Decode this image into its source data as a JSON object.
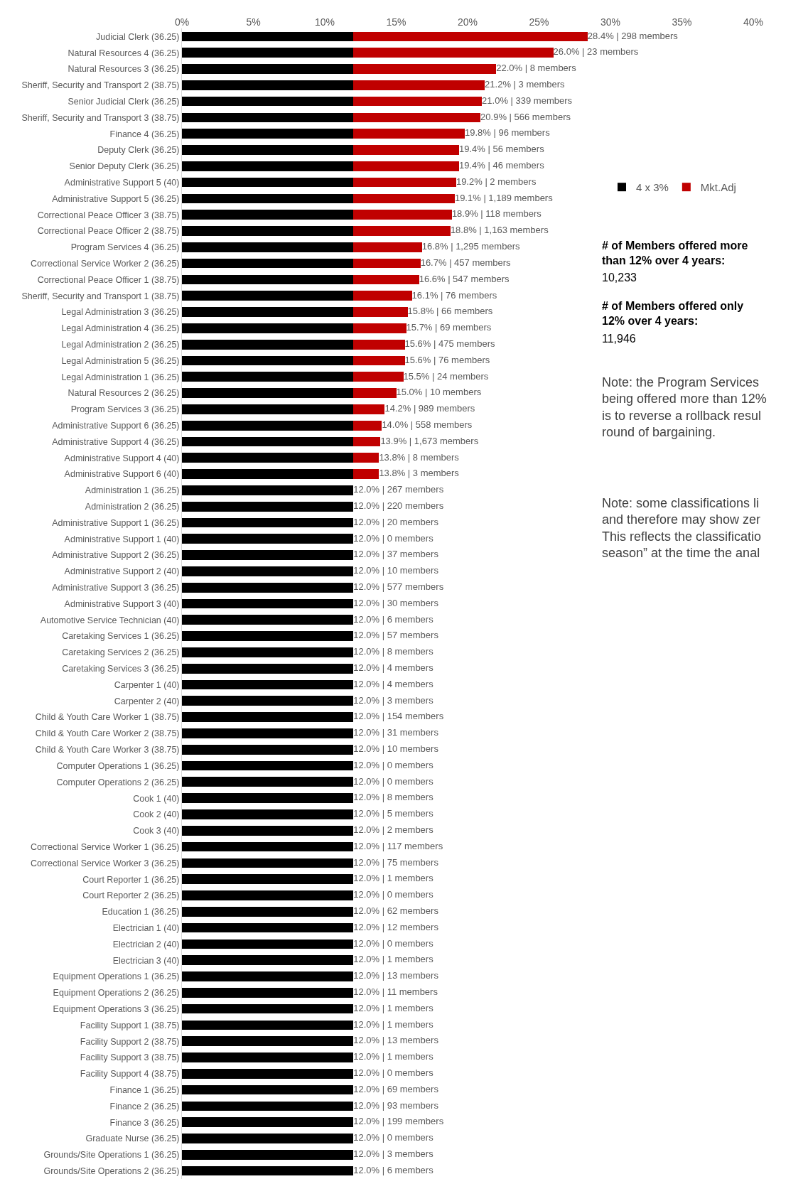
{
  "chart_data": {
    "type": "bar",
    "orientation": "horizontal",
    "stacked": true,
    "categories": [
      "Judicial Clerk (36.25)",
      "Natural Resources 4 (36.25)",
      "Natural Resources 3 (36.25)",
      "Sheriff, Security and Transport 2 (38.75)",
      "Senior Judicial Clerk (36.25)",
      "Sheriff, Security and Transport 3 (38.75)",
      "Finance 4 (36.25)",
      "Deputy Clerk (36.25)",
      "Senior Deputy Clerk (36.25)",
      "Administrative Support 5 (40)",
      "Administrative Support 5 (36.25)",
      "Correctional Peace Officer 3 (38.75)",
      "Correctional Peace Officer 2 (38.75)",
      "Program Services 4 (36.25)",
      "Correctional Service Worker 2 (36.25)",
      "Correctional Peace Officer 1 (38.75)",
      "Sheriff, Security and Transport 1 (38.75)",
      "Legal Administration 3 (36.25)",
      "Legal Administration 4 (36.25)",
      "Legal Administration 2 (36.25)",
      "Legal Administration 5 (36.25)",
      "Legal Administration 1 (36.25)",
      "Natural Resources 2 (36.25)",
      "Program Services 3 (36.25)",
      "Administrative Support 6 (36.25)",
      "Administrative Support 4 (36.25)",
      "Administrative Support 4 (40)",
      "Administrative Support 6 (40)",
      "Administration 1 (36.25)",
      "Administration 2 (36.25)",
      "Administrative Support 1 (36.25)",
      "Administrative Support 1 (40)",
      "Administrative Support 2 (36.25)",
      "Administrative Support 2 (40)",
      "Administrative Support 3 (36.25)",
      "Administrative Support 3 (40)",
      "Automotive Service Technician (40)",
      "Caretaking Services 1 (36.25)",
      "Caretaking Services 2 (36.25)",
      "Caretaking Services 3 (36.25)",
      "Carpenter 1 (40)",
      "Carpenter 2 (40)",
      "Child & Youth Care Worker 1 (38.75)",
      "Child & Youth Care Worker 2 (38.75)",
      "Child & Youth Care Worker 3 (38.75)",
      "Computer Operations 1 (36.25)",
      "Computer Operations 2 (36.25)",
      "Cook 1 (40)",
      "Cook 2 (40)",
      "Cook 3 (40)",
      "Correctional Service Worker 1 (36.25)",
      "Correctional Service Worker 3 (36.25)",
      "Court Reporter 1 (36.25)",
      "Court Reporter 2 (36.25)",
      "Education 1 (36.25)",
      "Electrician 1 (40)",
      "Electrician 2 (40)",
      "Electrician 3 (40)",
      "Equipment Operations 1 (36.25)",
      "Equipment Operations 2 (36.25)",
      "Equipment Operations 3 (36.25)",
      "Facility Support 1 (38.75)",
      "Facility Support 2 (38.75)",
      "Facility Support 3 (38.75)",
      "Facility Support 4 (38.75)",
      "Finance 1 (36.25)",
      "Finance 2 (36.25)",
      "Finance 3 (36.25)",
      "Graduate Nurse (36.25)",
      "Grounds/Site Operations 1 (36.25)",
      "Grounds/Site Operations 2 (36.25)"
    ],
    "series": [
      {
        "name": "4 x 3%",
        "color": "#000000",
        "values": [
          12,
          12,
          12,
          12,
          12,
          12,
          12,
          12,
          12,
          12,
          12,
          12,
          12,
          12,
          12,
          12,
          12,
          12,
          12,
          12,
          12,
          12,
          12,
          12,
          12,
          12,
          12,
          12,
          12,
          12,
          12,
          12,
          12,
          12,
          12,
          12,
          12,
          12,
          12,
          12,
          12,
          12,
          12,
          12,
          12,
          12,
          12,
          12,
          12,
          12,
          12,
          12,
          12,
          12,
          12,
          12,
          12,
          12,
          12,
          12,
          12,
          12,
          12,
          12,
          12,
          12,
          12,
          12,
          12,
          12,
          12
        ]
      },
      {
        "name": "Mkt.Adj",
        "color": "#c00000",
        "values": [
          16.4,
          14.0,
          10.0,
          9.2,
          9.0,
          8.9,
          7.8,
          7.4,
          7.4,
          7.2,
          7.1,
          6.9,
          6.8,
          4.8,
          4.7,
          4.6,
          4.1,
          3.8,
          3.7,
          3.6,
          3.6,
          3.5,
          3.0,
          2.2,
          2.0,
          1.9,
          1.8,
          1.8,
          0,
          0,
          0,
          0,
          0,
          0,
          0,
          0,
          0,
          0,
          0,
          0,
          0,
          0,
          0,
          0,
          0,
          0,
          0,
          0,
          0,
          0,
          0,
          0,
          0,
          0,
          0,
          0,
          0,
          0,
          0,
          0,
          0,
          0,
          0,
          0,
          0,
          0,
          0,
          0,
          0,
          0,
          0
        ]
      }
    ],
    "totals": [
      "28.4% | 298 members",
      "26.0% | 23 members",
      "22.0% | 8 members",
      "21.2% | 3 members",
      "21.0% | 339 members",
      "20.9% | 566 members",
      "19.8% | 96 members",
      "19.4% | 56 members",
      "19.4% | 46 members",
      "19.2% | 2 members",
      "19.1% | 1,189 members",
      "18.9% | 118 members",
      "18.8% | 1,163 members",
      "16.8% | 1,295 members",
      "16.7% | 457 members",
      "16.6% | 547 members",
      "16.1% | 76 members",
      "15.8% | 66 members",
      "15.7% | 69 members",
      "15.6% | 475 members",
      "15.6% | 76 members",
      "15.5% | 24 members",
      "15.0% | 10 members",
      "14.2% | 989 members",
      "14.0% | 558 members",
      "13.9% | 1,673 members",
      "13.8% | 8 members",
      "13.8% | 3 members",
      "12.0% | 267 members",
      "12.0% | 220 members",
      "12.0% | 20 members",
      "12.0% | 0 members",
      "12.0% | 37 members",
      "12.0% | 10 members",
      "12.0% | 577 members",
      "12.0% | 30 members",
      "12.0% | 6 members",
      "12.0% | 57 members",
      "12.0% | 8 members",
      "12.0% | 4 members",
      "12.0% | 4 members",
      "12.0% | 3 members",
      "12.0% | 154 members",
      "12.0% | 31 members",
      "12.0% | 10 members",
      "12.0% | 0 members",
      "12.0% | 0 members",
      "12.0% | 8 members",
      "12.0% | 5 members",
      "12.0% | 2 members",
      "12.0% | 117 members",
      "12.0% | 75 members",
      "12.0% | 1 members",
      "12.0% | 0 members",
      "12.0% | 62 members",
      "12.0% | 12 members",
      "12.0% | 0 members",
      "12.0% | 1 members",
      "12.0% | 13 members",
      "12.0% | 11 members",
      "12.0% | 1 members",
      "12.0% | 1 members",
      "12.0% | 13 members",
      "12.0% | 1 members",
      "12.0% | 0 members",
      "12.0% | 69 members",
      "12.0% | 93 members",
      "12.0% | 199 members",
      "12.0% | 0 members",
      "12.0% | 3 members",
      "12.0% | 6 members"
    ],
    "xlim": [
      0,
      40
    ],
    "xticks": [
      {
        "value": 0,
        "label": "0%"
      },
      {
        "value": 5,
        "label": "5%"
      },
      {
        "value": 10,
        "label": "10%"
      },
      {
        "value": 15,
        "label": "15%"
      },
      {
        "value": 20,
        "label": "20%"
      },
      {
        "value": 25,
        "label": "25%"
      },
      {
        "value": 30,
        "label": "30%"
      },
      {
        "value": 35,
        "label": "35%"
      },
      {
        "value": 40,
        "label": "40%"
      }
    ],
    "legend": "right",
    "annotations": [
      "# of Members offered more\nthan 12% over 4 years:",
      "10,233",
      "# of Members offered only\n12% over 4 years:",
      "11,946",
      "Note: the Program Services\nbeing offered more than 12%\nis to reverse a rollback resul\nround of bargaining.",
      "Note: some classifications li\nand therefore may show zer\nThis reflects the classificatio\nseason” at the time the anal"
    ]
  }
}
